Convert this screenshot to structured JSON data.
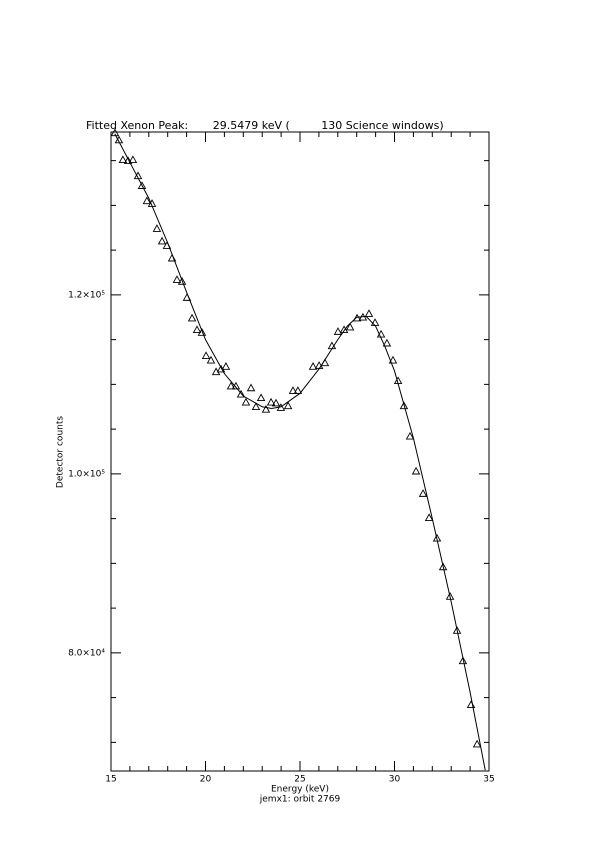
{
  "chart_data": {
    "type": "scatter",
    "title": "Fitted Xenon Peak:       29.5479 keV (         130 Science windows)",
    "x_label": "Energy (keV)",
    "subtitle": "jemx1: orbit 2769",
    "y_label": "Detector counts",
    "xlim": [
      15,
      35
    ],
    "ylim": [
      66800,
      138200
    ],
    "xticks": [
      15,
      20,
      25,
      30,
      35
    ],
    "xminor_ticks": [
      16,
      17,
      18,
      19,
      21,
      22,
      23,
      24,
      26,
      27,
      28,
      29,
      31,
      32,
      33,
      34
    ],
    "yticks": [
      {
        "value": 80000,
        "label": "8.0×10⁴"
      },
      {
        "value": 100000,
        "label": "1.0×10⁵"
      },
      {
        "value": 120000,
        "label": "1.2×10⁵"
      }
    ],
    "yminor_ticks": [
      70000,
      75000,
      85000,
      90000,
      95000,
      105000,
      110000,
      115000,
      125000,
      130000,
      135000
    ],
    "color": "#000000",
    "series": [
      {
        "marker": "triangle",
        "x": [
          15.21,
          15.42,
          15.63,
          15.9,
          16.16,
          16.43,
          16.64,
          16.9,
          17.17,
          17.43,
          17.7,
          17.96,
          18.23,
          18.49,
          18.76,
          19.02,
          19.29,
          19.55,
          19.81,
          20.03,
          20.29,
          20.56,
          20.82,
          21.08,
          21.35,
          21.61,
          21.88,
          22.14,
          22.41,
          22.67,
          22.94,
          23.2,
          23.47,
          23.73,
          23.99,
          24.37,
          24.63,
          24.89,
          25.69,
          26.01,
          26.32,
          26.69,
          27.01,
          27.33,
          27.65,
          28.02,
          28.33,
          28.65,
          28.97,
          29.29,
          29.6,
          29.92,
          30.19,
          30.5,
          30.82,
          31.14,
          31.51,
          31.83,
          32.25,
          32.57,
          32.94,
          33.31,
          33.62,
          34.05,
          34.37
        ],
        "values": [
          138100,
          137300,
          135100,
          135000,
          135100,
          133300,
          132200,
          130500,
          130200,
          127400,
          126000,
          125500,
          124100,
          121700,
          121500,
          119700,
          117400,
          116100,
          115800,
          113200,
          112700,
          111400,
          111700,
          112000,
          109800,
          109800,
          108900,
          108000,
          109600,
          107500,
          108500,
          107200,
          108000,
          107900,
          107400,
          107600,
          109300,
          109300,
          112000,
          112100,
          112400,
          114300,
          115900,
          116100,
          116400,
          117400,
          117500,
          117900,
          116900,
          115600,
          114600,
          112700,
          110400,
          107600,
          104200,
          100300,
          97800,
          95100,
          92800,
          89600,
          86300,
          82500,
          79100,
          74200,
          69800
        ]
      },
      {
        "marker": "none",
        "line": true,
        "x": [
          15.2,
          16,
          17,
          18,
          19,
          20,
          21,
          22,
          23,
          23.5,
          24,
          25,
          26,
          27,
          27.5,
          28,
          28.5,
          29,
          29.5,
          30,
          31,
          32,
          33,
          34,
          34.8
        ],
        "values": [
          138000,
          134800,
          130800,
          125800,
          120300,
          115000,
          111200,
          108700,
          107500,
          107300,
          107500,
          109000,
          111700,
          115000,
          116500,
          117500,
          117600,
          116500,
          114200,
          111500,
          104000,
          95000,
          85700,
          75600,
          66900
        ]
      }
    ]
  }
}
